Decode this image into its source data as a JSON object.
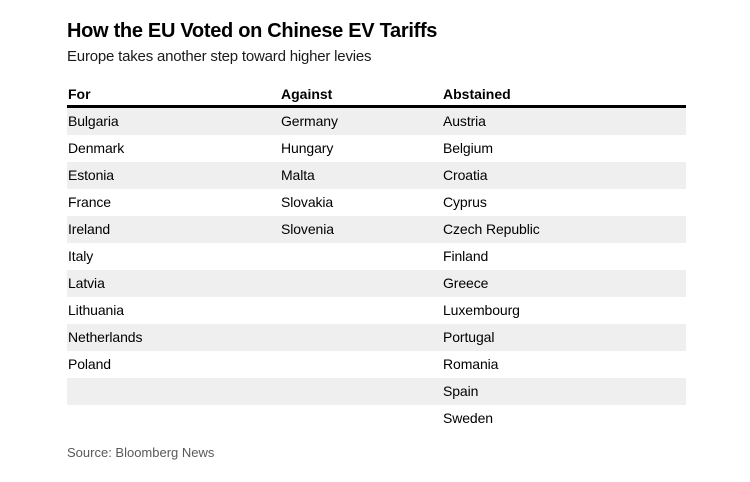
{
  "chart_data": {
    "type": "table",
    "title": "How the EU Voted on Chinese EV Tariffs",
    "subtitle": "Europe takes another step toward higher levies",
    "columns": [
      "For",
      "Against",
      "Abstained"
    ],
    "rows": [
      [
        "Bulgaria",
        "Germany",
        "Austria"
      ],
      [
        "Denmark",
        "Hungary",
        "Belgium"
      ],
      [
        "Estonia",
        "Malta",
        "Croatia"
      ],
      [
        "France",
        "Slovakia",
        "Cyprus"
      ],
      [
        "Ireland",
        "Slovenia",
        "Czech Republic"
      ],
      [
        "Italy",
        "",
        "Finland"
      ],
      [
        "Latvia",
        "",
        "Greece"
      ],
      [
        "Lithuania",
        "",
        "Luxembourg"
      ],
      [
        "Netherlands",
        "",
        "Portugal"
      ],
      [
        "Poland",
        "",
        "Romania"
      ],
      [
        "",
        "",
        "Spain"
      ],
      [
        "",
        "",
        "Sweden"
      ]
    ],
    "source": "Source: Bloomberg News",
    "layout": {
      "alternating_row_shading": true,
      "header_rule": "thick-black-bottom-border",
      "legend": "none"
    },
    "colors": {
      "background": "#ffffff",
      "row_alt": "#efefef",
      "header_rule": "#000000",
      "text": "#000000",
      "source_text": "#595959"
    }
  }
}
